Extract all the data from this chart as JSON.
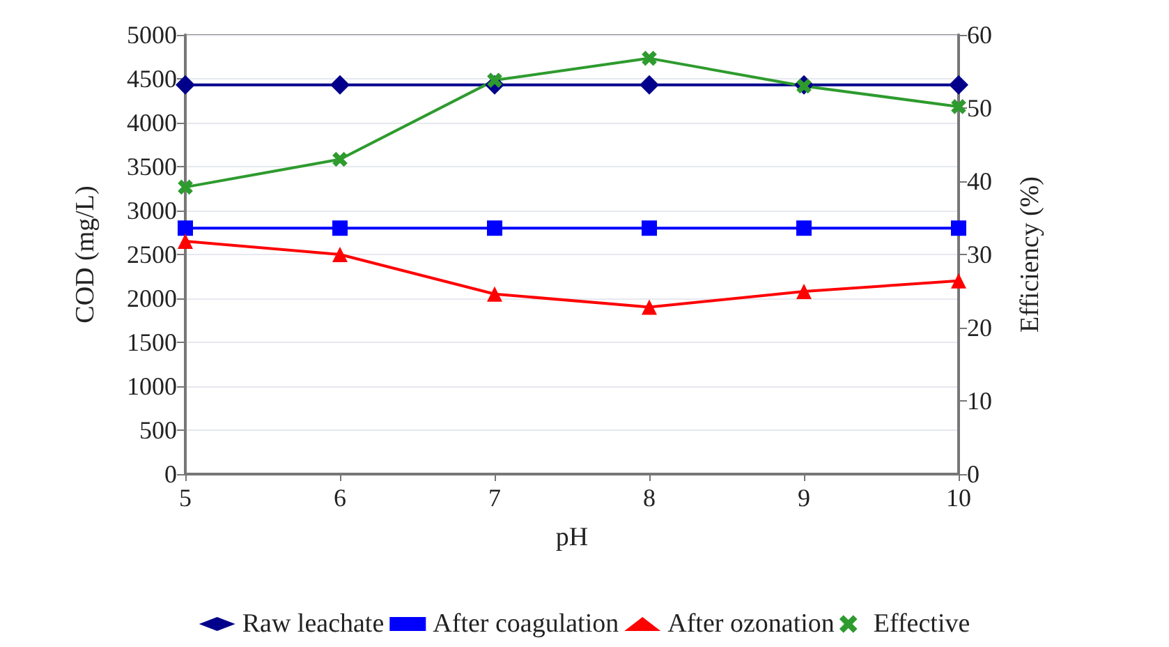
{
  "chart_data": {
    "type": "line",
    "xlabel": "pH",
    "ylabel": "COD (mg/L)",
    "y2label": "Efficiency (%)",
    "x": [
      5,
      6,
      7,
      8,
      9,
      10
    ],
    "xlim": [
      5,
      10
    ],
    "xticks": [
      5,
      6,
      7,
      8,
      9,
      10
    ],
    "ylim": [
      0,
      5000
    ],
    "yticks": [
      0,
      500,
      1000,
      1500,
      2000,
      2500,
      3000,
      3500,
      4000,
      4500,
      5000
    ],
    "y2lim": [
      0,
      60
    ],
    "y2ticks": [
      0,
      10,
      20,
      30,
      40,
      50,
      60
    ],
    "grid": "y",
    "legend": "bottom",
    "series": [
      {
        "name": "Raw leachate",
        "color": "#00008b",
        "marker": "diamond",
        "values": [
          4430,
          4430,
          4430,
          4430,
          4430,
          4430
        ]
      },
      {
        "name": "After coagulation",
        "color": "#0000ff",
        "marker": "square",
        "values": [
          2800,
          2800,
          2800,
          2800,
          2800,
          2800
        ]
      },
      {
        "name": "After ozonation",
        "color": "#ff0000",
        "marker": "triangle",
        "values": [
          2650,
          2500,
          2050,
          1900,
          2080,
          2200
        ]
      },
      {
        "name": "Effective",
        "color": "#2e9b2e",
        "marker": "cross",
        "axis": "y2",
        "values": [
          39.2,
          43,
          53.8,
          56.8,
          53,
          50.2
        ]
      }
    ]
  }
}
